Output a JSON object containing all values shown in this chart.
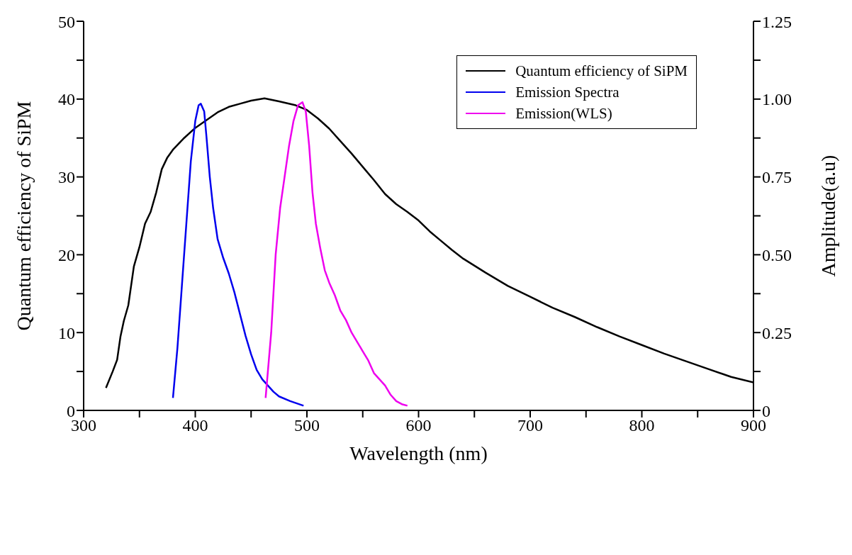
{
  "chart_data": {
    "type": "line",
    "xlabel": "Wavelength (nm)",
    "ylabel": "Quantum efficiency of SiPM",
    "y2label": "Amplitude(a.u)",
    "xlim": [
      300,
      900
    ],
    "xticks": [
      300,
      {
        "value": 350,
        "label": null
      },
      400,
      {
        "value": 450,
        "label": null
      },
      500,
      {
        "value": 550,
        "label": null
      },
      600,
      {
        "value": 650,
        "label": null
      },
      700,
      {
        "value": 750,
        "label": null
      },
      800,
      {
        "value": 850,
        "label": null
      },
      900
    ],
    "ylim": [
      0,
      50
    ],
    "yticks": [
      0,
      {
        "value": 5,
        "label": null
      },
      10,
      {
        "value": 15,
        "label": null
      },
      20,
      {
        "value": 25,
        "label": null
      },
      30,
      {
        "value": 35,
        "label": null
      },
      40,
      {
        "value": 45,
        "label": null
      },
      50
    ],
    "y2lim": [
      0,
      1.25
    ],
    "y2ticks": [
      {
        "value": 0,
        "label": "0"
      },
      {
        "value": 0.125,
        "label": null
      },
      {
        "value": 0.25,
        "label": "0.25"
      },
      {
        "value": 0.375,
        "label": null
      },
      {
        "value": 0.5,
        "label": "0.50"
      },
      {
        "value": 0.625,
        "label": null
      },
      {
        "value": 0.75,
        "label": "0.75"
      },
      {
        "value": 0.875,
        "label": null
      },
      {
        "value": 1,
        "label": "1.00"
      },
      {
        "value": 1.125,
        "label": null
      },
      {
        "value": 1.25,
        "label": "1.25"
      }
    ],
    "grid": false,
    "legend": "top right",
    "marker": "none",
    "line_style": "solid",
    "series": [
      {
        "name": "Quantum efficiency of SiPM",
        "color": "#000000",
        "x": [
          320,
          326,
          330,
          333,
          336,
          340,
          345,
          350,
          355,
          360,
          365,
          370,
          375,
          380,
          390,
          400,
          410,
          420,
          430,
          440,
          450,
          462,
          475,
          490,
          500,
          510,
          520,
          530,
          540,
          550,
          560,
          570,
          580,
          590,
          600,
          610,
          620,
          630,
          640,
          660,
          680,
          700,
          720,
          740,
          760,
          780,
          800,
          820,
          840,
          860,
          880,
          900
        ],
        "values": [
          2.9,
          5,
          6.5,
          9.5,
          11.5,
          13.5,
          18.5,
          21,
          24,
          25.5,
          28,
          31,
          32.5,
          33.5,
          35,
          36.3,
          37.3,
          38.3,
          39,
          39.4,
          39.8,
          40.1,
          39.7,
          39.2,
          38.6,
          37.5,
          36.2,
          34.6,
          33,
          31.3,
          29.6,
          27.8,
          26.5,
          25.5,
          24.4,
          23,
          21.8,
          20.6,
          19.5,
          17.7,
          16,
          14.6,
          13.2,
          12,
          10.7,
          9.5,
          8.4,
          7.3,
          6.3,
          5.3,
          4.3,
          3.6
        ]
      },
      {
        "name": "Emission Spectra",
        "color": "#0000ee",
        "axis": "y2",
        "x": [
          380,
          384,
          388,
          392,
          396,
          400,
          403,
          405,
          408,
          410,
          413,
          416,
          420,
          425,
          430,
          435,
          440,
          445,
          450,
          455,
          460,
          465,
          470,
          475,
          485,
          497
        ],
        "values": [
          0.04,
          0.2,
          0.4,
          0.6,
          0.8,
          0.93,
          0.98,
          0.985,
          0.96,
          0.88,
          0.75,
          0.65,
          0.55,
          0.49,
          0.44,
          0.38,
          0.31,
          0.24,
          0.18,
          0.13,
          0.1,
          0.08,
          0.06,
          0.045,
          0.03,
          0.015
        ]
      },
      {
        "name": "Emission(WLS)",
        "color": "#ee00ee",
        "axis": "y2",
        "x": [
          463,
          468,
          472,
          476,
          480,
          484,
          488,
          492,
          496,
          499,
          502,
          505,
          508,
          512,
          516,
          520,
          525,
          530,
          535,
          540,
          545,
          550,
          555,
          560,
          565,
          570,
          575,
          580,
          585,
          590
        ],
        "values": [
          0.04,
          0.25,
          0.5,
          0.65,
          0.75,
          0.85,
          0.93,
          0.98,
          0.99,
          0.96,
          0.85,
          0.7,
          0.6,
          0.52,
          0.45,
          0.41,
          0.37,
          0.32,
          0.29,
          0.25,
          0.22,
          0.19,
          0.16,
          0.12,
          0.1,
          0.08,
          0.05,
          0.03,
          0.02,
          0.015
        ]
      }
    ]
  }
}
